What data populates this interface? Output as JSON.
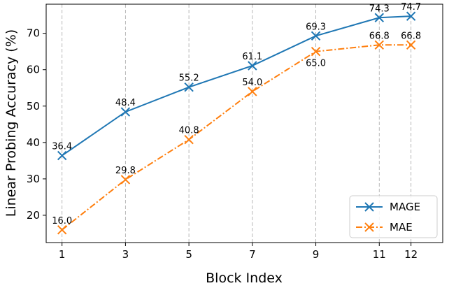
{
  "chart_data": {
    "type": "line",
    "xlabel": "Block Index",
    "ylabel": "Linear Probing Accuracy (%)",
    "x": [
      1,
      3,
      5,
      7,
      9,
      11,
      12
    ],
    "xlim": [
      0.5,
      13
    ],
    "ylim": [
      12.5,
      78
    ],
    "yticks": [
      20,
      30,
      40,
      50,
      60,
      70
    ],
    "grid": "vertical dashed",
    "legend_position": "lower-right",
    "series": [
      {
        "name": "MAGE",
        "values": [
          36.4,
          48.4,
          55.2,
          61.1,
          69.3,
          74.3,
          74.7
        ],
        "labels": [
          "36.4",
          "48.4",
          "55.2",
          "61.1",
          "69.3",
          "74.3",
          "74.7"
        ],
        "color": "#1f77b4",
        "linestyle": "solid",
        "marker": "x"
      },
      {
        "name": "MAE",
        "values": [
          16.0,
          29.8,
          40.8,
          54.0,
          65.0,
          66.8,
          66.8
        ],
        "labels": [
          "16.0",
          "29.8",
          "40.8",
          "54.0",
          "65.0",
          "66.8",
          "66.8"
        ],
        "color": "#ff7f0e",
        "linestyle": "dashdot",
        "marker": "x"
      }
    ]
  }
}
